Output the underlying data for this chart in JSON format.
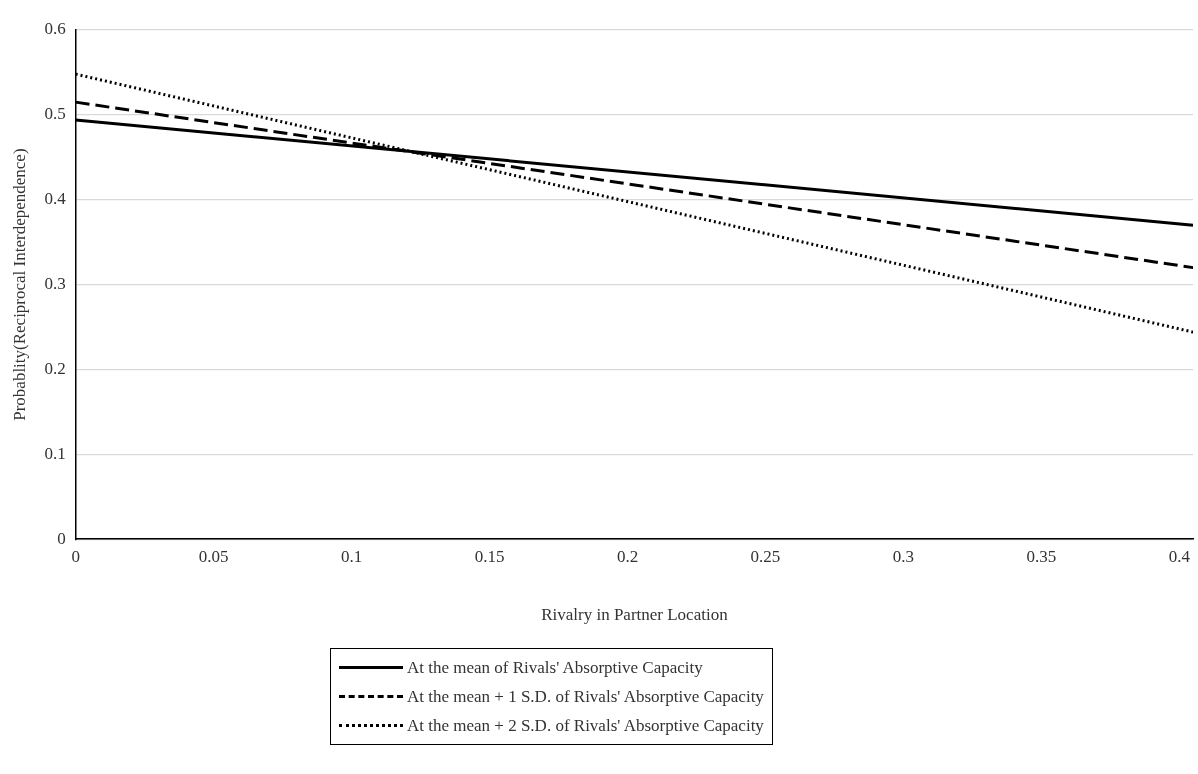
{
  "chart_data": {
    "type": "line",
    "xlabel": "Rivalry in Partner Location",
    "ylabel": "Probablity(Reciprocal Interdependence)",
    "x": [
      0,
      0.405
    ],
    "series": [
      {
        "name": "At the mean of Rivals' Absorptive Capacity",
        "color": "#000000",
        "values": [
          0.494,
          0.37
        ],
        "line_style": "solid"
      },
      {
        "name": "At the mean + 1 S.D. of Rivals' Absorptive Capacity",
        "color": "#000000",
        "values": [
          0.515,
          0.32
        ],
        "line_style": "dashed"
      },
      {
        "name": "At the mean + 2 S.D. of Rivals' Absorptive Capacity",
        "color": "#000000",
        "values": [
          0.548,
          0.244
        ],
        "line_style": "dotted"
      }
    ],
    "xlim": [
      0,
      0.405
    ],
    "xticks": [
      0,
      0.05,
      0.1,
      0.15,
      0.2,
      0.25,
      0.3,
      0.35,
      0.4
    ],
    "ylim": [
      0,
      0.6
    ],
    "yticks": [
      0,
      0.1,
      0.2,
      0.3,
      0.4,
      0.5,
      0.6
    ],
    "grid": "y",
    "legend": "bottom",
    "marker": "none"
  }
}
